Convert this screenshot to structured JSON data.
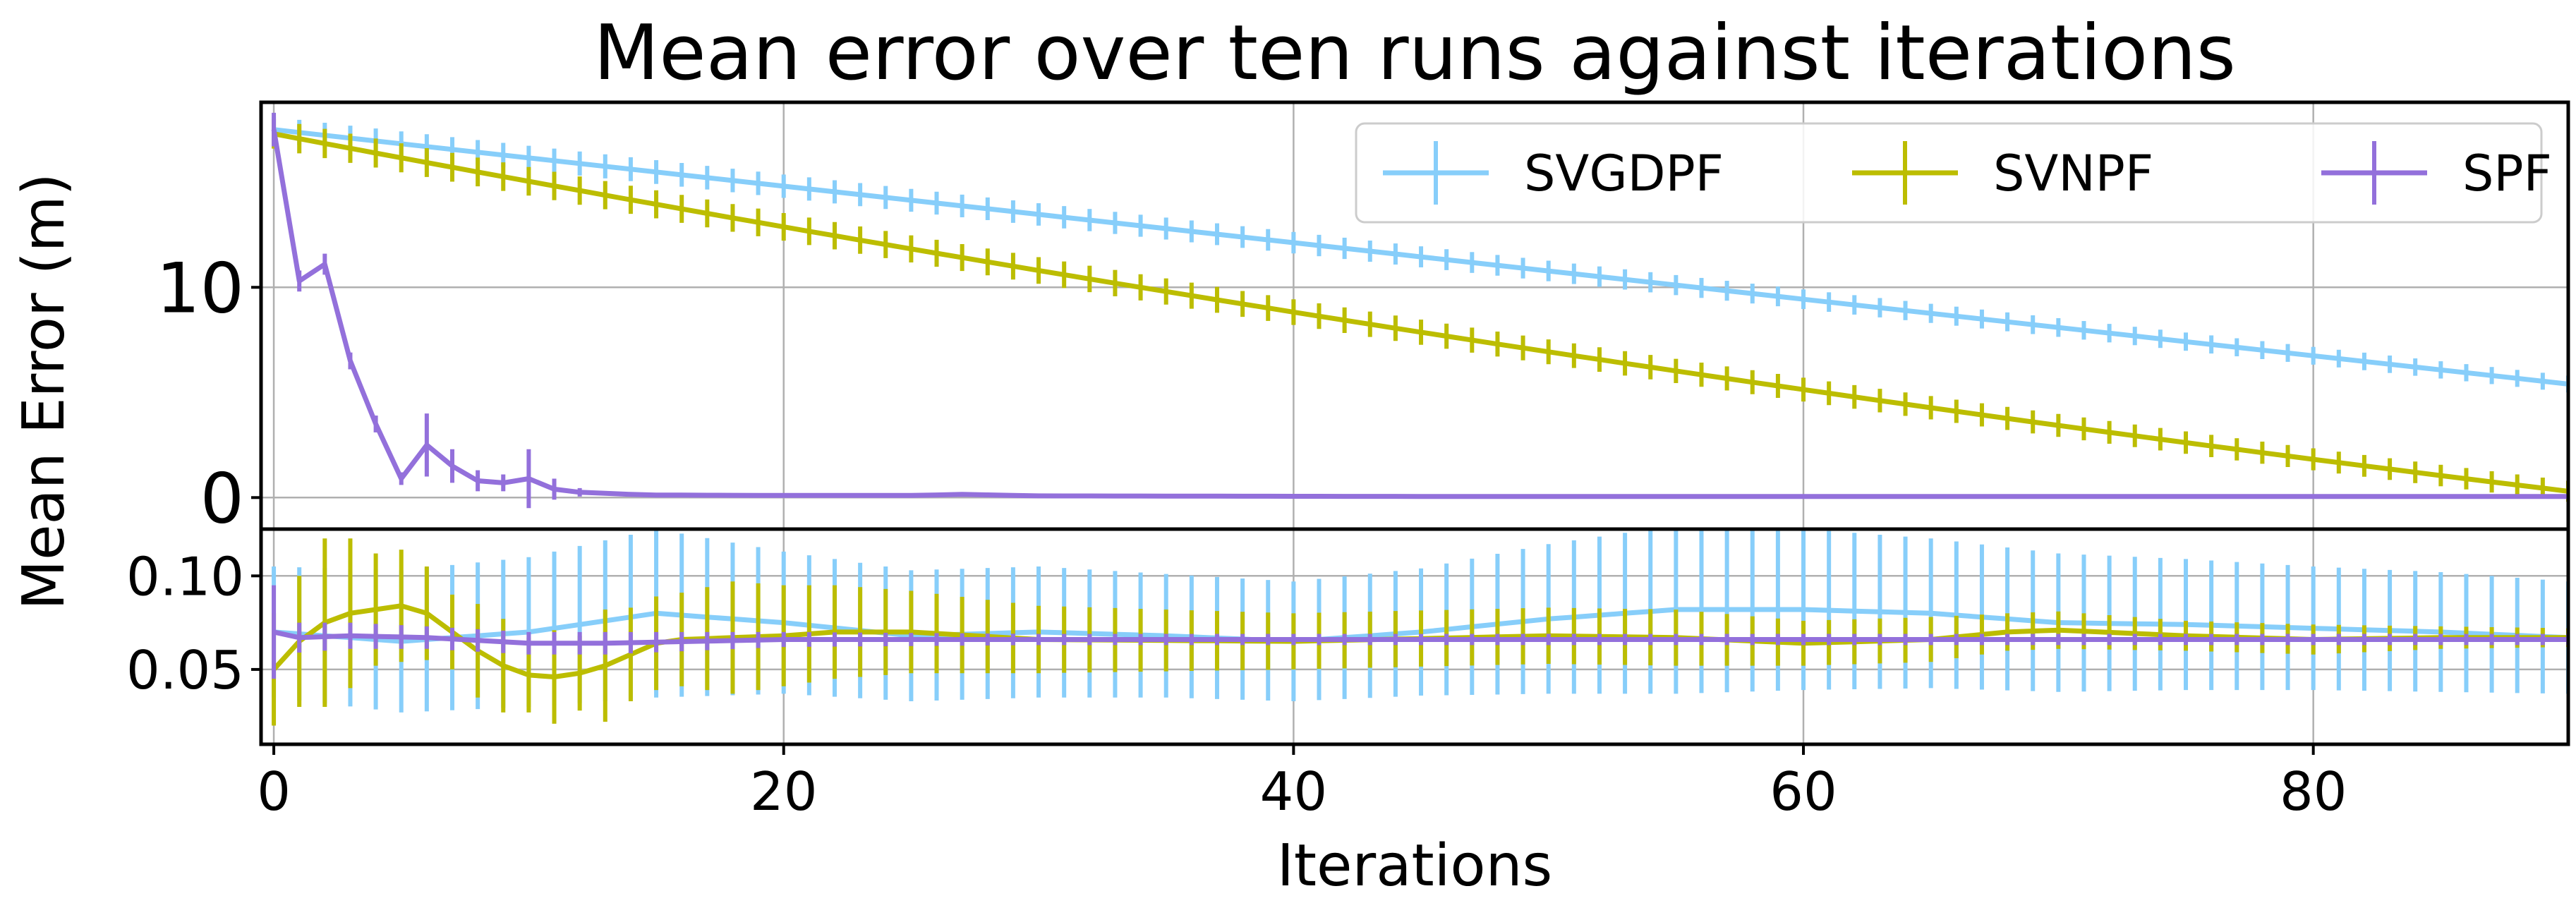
{
  "chart_data": {
    "type": "line",
    "title": "Mean error over ten runs against iterations",
    "xlabel": "Iterations",
    "ylabel": "Mean Error (m)",
    "xlim": [
      -0.5,
      90
    ],
    "x_ticks": [
      0,
      20,
      40,
      60,
      80
    ],
    "grid": true,
    "legend_position": "top-right",
    "legend_columns": 3,
    "panels": [
      {
        "id": "top",
        "ylim": [
          -1.5,
          18.8
        ],
        "y_ticks": [
          0,
          10
        ],
        "series": [
          {
            "name": "SVGDPF",
            "color": "#87cefa",
            "style": "linear",
            "y_start": 17.5,
            "y_end": 5.4,
            "err_start": 0.6,
            "err_end": 0.4
          },
          {
            "name": "SVNPF",
            "color": "#bcbd00",
            "style": "decay",
            "y_start": 17.3,
            "y_end": 0.3,
            "err_start": 0.7,
            "err_end": 0.5
          },
          {
            "name": "SPF",
            "color": "#9370db",
            "x": [
              0,
              1,
              2,
              3,
              4,
              5,
              6,
              7,
              8,
              9,
              10,
              11,
              12,
              13,
              14,
              15,
              20,
              25,
              27,
              30,
              40,
              50,
              60,
              70,
              80,
              90
            ],
            "y": [
              17.5,
              10.3,
              11.1,
              6.5,
              3.5,
              0.9,
              2.5,
              1.5,
              0.8,
              0.7,
              0.9,
              0.4,
              0.25,
              0.2,
              0.15,
              0.12,
              0.1,
              0.1,
              0.15,
              0.08,
              0.06,
              0.05,
              0.05,
              0.05,
              0.05,
              0.05
            ],
            "err": [
              0.8,
              0.5,
              0.5,
              0.4,
              0.4,
              0.3,
              1.5,
              0.8,
              0.5,
              0.4,
              1.4,
              0.5,
              0.2,
              0.1,
              0.05,
              0.05,
              0.02,
              0.02,
              0.05,
              0.02,
              0.02,
              0.02,
              0.02,
              0.02,
              0.02,
              0.02
            ]
          }
        ]
      },
      {
        "id": "bottom",
        "ylim": [
          0.01,
          0.125
        ],
        "y_ticks": [
          0.05,
          0.1
        ],
        "y_tick_labels": [
          "0.05",
          "0.10"
        ],
        "series": [
          {
            "name": "SVGDPF",
            "color": "#87cefa",
            "x": [
              0,
              5,
              10,
              15,
              20,
              25,
              30,
              35,
              40,
              45,
              50,
              55,
              60,
              65,
              70,
              75,
              80,
              85,
              90
            ],
            "y": [
              0.07,
              0.065,
              0.07,
              0.08,
              0.075,
              0.068,
              0.07,
              0.068,
              0.065,
              0.07,
              0.077,
              0.082,
              0.082,
              0.08,
              0.075,
              0.074,
              0.072,
              0.07,
              0.067
            ],
            "err": [
              0.035,
              0.038,
              0.04,
              0.045,
              0.038,
              0.035,
              0.035,
              0.033,
              0.032,
              0.034,
              0.04,
              0.045,
              0.043,
              0.04,
              0.037,
              0.035,
              0.033,
              0.032,
              0.03
            ]
          },
          {
            "name": "SVNPF",
            "color": "#bcbd00",
            "x": [
              0,
              1,
              2,
              3,
              4,
              5,
              6,
              7,
              8,
              9,
              10,
              11,
              12,
              13,
              14,
              15,
              16,
              18,
              20,
              22,
              25,
              30,
              40,
              50,
              55,
              60,
              65,
              68,
              70,
              75,
              80,
              85,
              90
            ],
            "y": [
              0.05,
              0.065,
              0.075,
              0.08,
              0.082,
              0.084,
              0.08,
              0.07,
              0.06,
              0.052,
              0.047,
              0.046,
              0.048,
              0.052,
              0.058,
              0.064,
              0.066,
              0.067,
              0.068,
              0.07,
              0.07,
              0.066,
              0.065,
              0.068,
              0.067,
              0.064,
              0.066,
              0.07,
              0.071,
              0.068,
              0.066,
              0.067,
              0.067
            ],
            "err": [
              0.03,
              0.035,
              0.045,
              0.04,
              0.03,
              0.03,
              0.025,
              0.02,
              0.025,
              0.025,
              0.02,
              0.025,
              0.02,
              0.03,
              0.025,
              0.025,
              0.025,
              0.03,
              0.027,
              0.025,
              0.022,
              0.018,
              0.015,
              0.015,
              0.015,
              0.012,
              0.012,
              0.01,
              0.01,
              0.008,
              0.008,
              0.006,
              0.005
            ]
          },
          {
            "name": "SPF",
            "color": "#9370db",
            "x": [
              0,
              1,
              3,
              6,
              10,
              13,
              20,
              30,
              40,
              50,
              60,
              70,
              80,
              90
            ],
            "y": [
              0.07,
              0.067,
              0.068,
              0.067,
              0.064,
              0.064,
              0.066,
              0.066,
              0.066,
              0.066,
              0.066,
              0.066,
              0.066,
              0.066
            ],
            "err": [
              0.025,
              0.008,
              0.007,
              0.006,
              0.006,
              0.006,
              0.004,
              0.003,
              0.003,
              0.003,
              0.003,
              0.003,
              0.003,
              0.003
            ]
          }
        ]
      }
    ]
  }
}
